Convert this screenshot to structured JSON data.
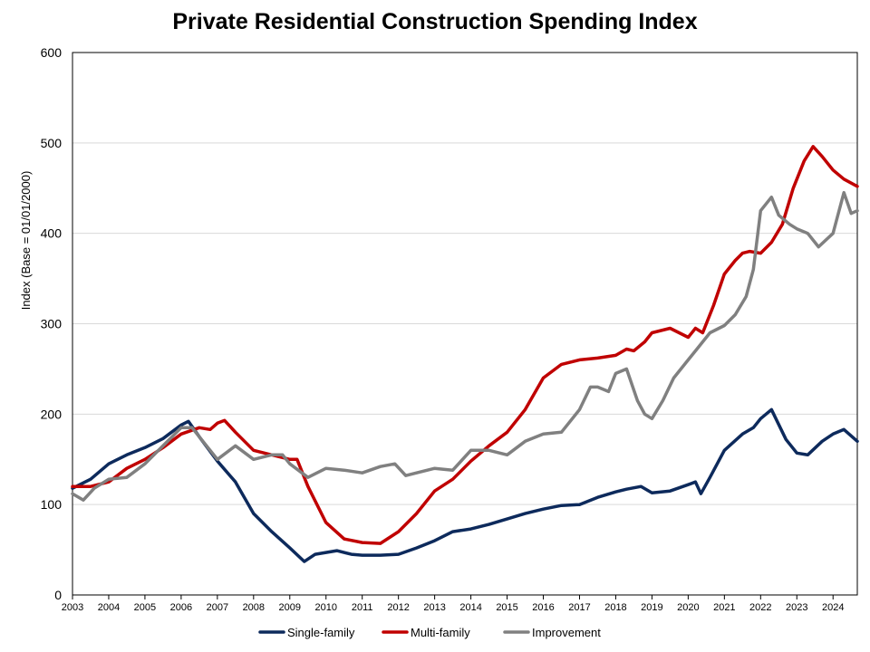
{
  "chart_data": {
    "type": "line",
    "title": "Private Residential Construction Spending Index",
    "ylabel": "Index  (Base = 01/01/2000)",
    "xlabel": "",
    "ylim": [
      0,
      600
    ],
    "yticks": [
      0,
      100,
      200,
      300,
      400,
      500,
      600
    ],
    "xlim": [
      2003.0,
      2024.67
    ],
    "xticks": [
      2003,
      2004,
      2005,
      2006,
      2007,
      2008,
      2009,
      2010,
      2011,
      2012,
      2013,
      2014,
      2015,
      2016,
      2017,
      2018,
      2019,
      2020,
      2021,
      2022,
      2023,
      2024
    ],
    "grid": "horizontal",
    "legend_position": "bottom",
    "series": [
      {
        "name": "Single-family",
        "color": "#0D2A5C",
        "x": [
          2003.0,
          2003.5,
          2004.0,
          2004.5,
          2005.0,
          2005.5,
          2006.0,
          2006.2,
          2006.5,
          2007.0,
          2007.5,
          2008.0,
          2008.5,
          2009.0,
          2009.4,
          2009.7,
          2010.0,
          2010.3,
          2010.7,
          2011.0,
          2011.5,
          2012.0,
          2012.5,
          2013.0,
          2013.5,
          2014.0,
          2014.5,
          2015.0,
          2015.5,
          2016.0,
          2016.5,
          2017.0,
          2017.5,
          2018.0,
          2018.3,
          2018.7,
          2019.0,
          2019.5,
          2020.0,
          2020.2,
          2020.35,
          2020.6,
          2021.0,
          2021.5,
          2021.8,
          2022.0,
          2022.3,
          2022.7,
          2023.0,
          2023.3,
          2023.7,
          2024.0,
          2024.3,
          2024.67
        ],
        "values": [
          118,
          128,
          145,
          155,
          163,
          173,
          188,
          192,
          175,
          148,
          125,
          90,
          70,
          52,
          37,
          45,
          47,
          49,
          45,
          44,
          44,
          45,
          52,
          60,
          70,
          73,
          78,
          84,
          90,
          95,
          99,
          100,
          108,
          114,
          117,
          120,
          113,
          115,
          122,
          125,
          112,
          130,
          160,
          178,
          185,
          195,
          205,
          172,
          157,
          155,
          170,
          178,
          183,
          170
        ]
      },
      {
        "name": "Multi-family",
        "color": "#C00000",
        "x": [
          2003.0,
          2003.5,
          2004.0,
          2004.5,
          2005.0,
          2005.5,
          2006.0,
          2006.5,
          2006.8,
          2007.0,
          2007.2,
          2007.5,
          2008.0,
          2008.5,
          2009.0,
          2009.2,
          2009.5,
          2010.0,
          2010.5,
          2011.0,
          2011.5,
          2012.0,
          2012.5,
          2013.0,
          2013.5,
          2014.0,
          2014.5,
          2015.0,
          2015.5,
          2016.0,
          2016.5,
          2017.0,
          2017.5,
          2018.0,
          2018.3,
          2018.5,
          2018.8,
          2019.0,
          2019.5,
          2020.0,
          2020.2,
          2020.4,
          2020.7,
          2021.0,
          2021.3,
          2021.5,
          2021.7,
          2022.0,
          2022.3,
          2022.6,
          2022.9,
          2023.2,
          2023.45,
          2023.7,
          2024.0,
          2024.3,
          2024.67
        ],
        "values": [
          120,
          120,
          125,
          140,
          150,
          163,
          178,
          185,
          183,
          190,
          193,
          180,
          160,
          155,
          150,
          150,
          120,
          80,
          62,
          58,
          57,
          70,
          90,
          115,
          128,
          148,
          165,
          180,
          205,
          240,
          255,
          260,
          262,
          265,
          272,
          270,
          280,
          290,
          295,
          285,
          295,
          290,
          320,
          355,
          370,
          378,
          380,
          378,
          390,
          410,
          450,
          480,
          496,
          485,
          470,
          460,
          452
        ]
      },
      {
        "name": "Improvement",
        "color": "#808080",
        "x": [
          2003.0,
          2003.3,
          2003.6,
          2004.0,
          2004.5,
          2005.0,
          2005.5,
          2006.0,
          2006.3,
          2006.7,
          2007.0,
          2007.5,
          2008.0,
          2008.5,
          2008.8,
          2009.0,
          2009.5,
          2010.0,
          2010.5,
          2011.0,
          2011.5,
          2011.9,
          2012.2,
          2012.5,
          2013.0,
          2013.5,
          2014.0,
          2014.5,
          2015.0,
          2015.5,
          2016.0,
          2016.5,
          2017.0,
          2017.3,
          2017.5,
          2017.8,
          2018.0,
          2018.3,
          2018.6,
          2018.8,
          2019.0,
          2019.3,
          2019.6,
          2020.0,
          2020.3,
          2020.6,
          2021.0,
          2021.3,
          2021.6,
          2021.8,
          2022.0,
          2022.3,
          2022.5,
          2022.8,
          2023.0,
          2023.3,
          2023.6,
          2024.0,
          2024.3,
          2024.5,
          2024.67
        ],
        "values": [
          112,
          105,
          118,
          128,
          130,
          145,
          165,
          185,
          185,
          165,
          150,
          165,
          150,
          155,
          155,
          145,
          130,
          140,
          138,
          135,
          142,
          145,
          132,
          135,
          140,
          138,
          160,
          160,
          155,
          170,
          178,
          180,
          205,
          230,
          230,
          225,
          245,
          250,
          215,
          200,
          195,
          215,
          240,
          260,
          275,
          290,
          298,
          310,
          330,
          360,
          425,
          440,
          420,
          410,
          405,
          400,
          385,
          400,
          445,
          422,
          425
        ]
      }
    ]
  }
}
